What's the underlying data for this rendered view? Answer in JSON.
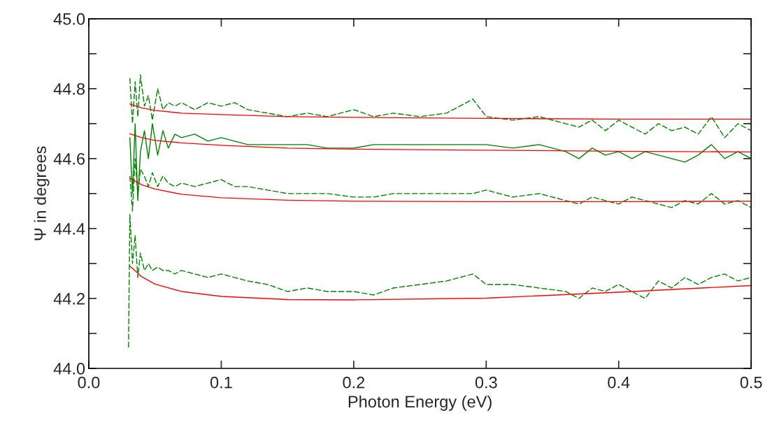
{
  "chart_data": {
    "type": "line",
    "xlabel": "Photon Energy (eV)",
    "ylabel": "Ψ in degrees",
    "xlim": [
      0.0,
      0.5
    ],
    "xticks": [
      {
        "value": 0.0,
        "label": "0.0"
      },
      0.1,
      0.2,
      0.3,
      {
        "value": 0.4,
        "label": "0.4"
      },
      0.5
    ],
    "ylim": [
      44.0,
      45.0
    ],
    "yticks": [
      {
        "value": 44.0,
        "label": "44.0"
      },
      {
        "value": 44.1,
        "label": null
      },
      {
        "value": 44.2,
        "label": "44.2"
      },
      {
        "value": 44.3,
        "label": null
      },
      {
        "value": 44.4,
        "label": "44.4"
      },
      {
        "value": 44.5,
        "label": null
      },
      {
        "value": 44.6,
        "label": "44.6"
      },
      {
        "value": 44.7,
        "label": null
      },
      {
        "value": 44.8,
        "label": "44.8"
      },
      {
        "value": 44.9,
        "label": null
      },
      {
        "value": 45.0,
        "label": "45.0"
      }
    ],
    "grid": false,
    "legend": false,
    "x": [
      0.031,
      0.033,
      0.035,
      0.037,
      0.039,
      0.042,
      0.045,
      0.048,
      0.052,
      0.056,
      0.06,
      0.065,
      0.07,
      0.08,
      0.09,
      0.1,
      0.11,
      0.12,
      0.135,
      0.15,
      0.165,
      0.18,
      0.2,
      0.215,
      0.23,
      0.25,
      0.27,
      0.29,
      0.3,
      0.32,
      0.34,
      0.36,
      0.37,
      0.38,
      0.39,
      0.4,
      0.41,
      0.42,
      0.43,
      0.44,
      0.45,
      0.46,
      0.47,
      0.48,
      0.49,
      0.5
    ],
    "series": [
      {
        "color": "#008000",
        "line_style": "dashed",
        "values": [
          44.83,
          44.7,
          44.82,
          44.72,
          44.84,
          44.75,
          44.78,
          44.71,
          44.8,
          44.74,
          44.76,
          44.75,
          44.76,
          44.74,
          44.76,
          44.75,
          44.76,
          44.74,
          44.73,
          44.72,
          44.73,
          44.72,
          44.74,
          44.72,
          44.73,
          44.72,
          44.73,
          44.77,
          44.72,
          44.71,
          44.72,
          44.7,
          44.69,
          44.71,
          44.68,
          44.71,
          44.69,
          44.67,
          44.7,
          44.68,
          44.69,
          44.67,
          44.72,
          44.66,
          44.7,
          44.68
        ]
      },
      {
        "color": "#008000",
        "line_style": "solid",
        "values": [
          44.66,
          44.5,
          44.7,
          44.48,
          44.62,
          44.68,
          44.6,
          44.7,
          44.61,
          44.68,
          44.63,
          44.67,
          44.66,
          44.67,
          44.65,
          44.66,
          44.65,
          44.64,
          44.64,
          44.64,
          44.64,
          44.63,
          44.63,
          44.64,
          44.64,
          44.64,
          44.64,
          44.64,
          44.64,
          44.63,
          44.64,
          44.62,
          44.6,
          44.63,
          44.61,
          44.62,
          44.6,
          44.62,
          44.61,
          44.6,
          44.59,
          44.61,
          44.64,
          44.6,
          44.62,
          44.6
        ]
      },
      {
        "color": "#008000",
        "line_style": "dashed",
        "values": [
          44.55,
          44.45,
          44.6,
          44.5,
          44.57,
          44.55,
          44.52,
          44.56,
          44.52,
          44.55,
          44.53,
          44.52,
          44.53,
          44.52,
          44.53,
          44.54,
          44.52,
          44.52,
          44.51,
          44.5,
          44.5,
          44.5,
          44.49,
          44.49,
          44.5,
          44.5,
          44.5,
          44.5,
          44.51,
          44.49,
          44.5,
          44.48,
          44.47,
          44.49,
          44.48,
          44.47,
          44.49,
          44.48,
          44.47,
          44.46,
          44.48,
          44.47,
          44.5,
          44.47,
          44.48,
          44.46
        ]
      },
      {
        "color": "#008000",
        "line_style": "dashed",
        "x": [
          0.03,
          0.031,
          0.033,
          0.035,
          0.037,
          0.039,
          0.042,
          0.045,
          0.048,
          0.052,
          0.056,
          0.06,
          0.065,
          0.07,
          0.08,
          0.09,
          0.1,
          0.11,
          0.12,
          0.135,
          0.15,
          0.165,
          0.18,
          0.2,
          0.215,
          0.23,
          0.25,
          0.27,
          0.29,
          0.3,
          0.32,
          0.34,
          0.36,
          0.37,
          0.38,
          0.39,
          0.4,
          0.41,
          0.42,
          0.43,
          0.44,
          0.45,
          0.46,
          0.47,
          0.48,
          0.49,
          0.5
        ],
        "values": [
          44.06,
          44.44,
          44.3,
          44.38,
          44.26,
          44.33,
          44.28,
          44.3,
          44.28,
          44.29,
          44.28,
          44.28,
          44.27,
          44.28,
          44.27,
          44.26,
          44.27,
          44.26,
          44.25,
          44.24,
          44.22,
          44.23,
          44.22,
          44.22,
          44.21,
          44.23,
          44.24,
          44.25,
          44.27,
          44.24,
          44.24,
          44.23,
          44.22,
          44.2,
          44.23,
          44.22,
          44.24,
          44.22,
          44.2,
          44.25,
          44.23,
          44.26,
          44.24,
          44.26,
          44.27,
          44.25,
          44.26
        ]
      },
      {
        "color": "#ff0000",
        "line_style": "solid",
        "x": [
          0.031,
          0.04,
          0.05,
          0.07,
          0.1,
          0.15,
          0.2,
          0.3,
          0.4,
          0.5
        ],
        "values": [
          44.756,
          44.745,
          44.738,
          44.73,
          44.726,
          44.72,
          44.718,
          44.715,
          44.713,
          44.713
        ]
      },
      {
        "color": "#ff0000",
        "line_style": "solid",
        "x": [
          0.031,
          0.04,
          0.05,
          0.07,
          0.1,
          0.15,
          0.2,
          0.3,
          0.4,
          0.5
        ],
        "values": [
          44.671,
          44.66,
          44.652,
          44.645,
          44.638,
          44.63,
          44.627,
          44.624,
          44.621,
          44.619
        ]
      },
      {
        "color": "#ff0000",
        "line_style": "solid",
        "x": [
          0.031,
          0.04,
          0.05,
          0.07,
          0.1,
          0.15,
          0.2,
          0.3,
          0.4,
          0.5
        ],
        "values": [
          44.544,
          44.525,
          44.513,
          44.498,
          44.488,
          44.481,
          44.478,
          44.477,
          44.477,
          44.478
        ]
      },
      {
        "color": "#ff0000",
        "line_style": "solid",
        "x": [
          0.031,
          0.04,
          0.05,
          0.07,
          0.1,
          0.15,
          0.2,
          0.3,
          0.4,
          0.5
        ],
        "values": [
          44.293,
          44.262,
          44.241,
          44.22,
          44.206,
          44.197,
          44.196,
          44.201,
          44.218,
          44.237
        ]
      }
    ]
  }
}
